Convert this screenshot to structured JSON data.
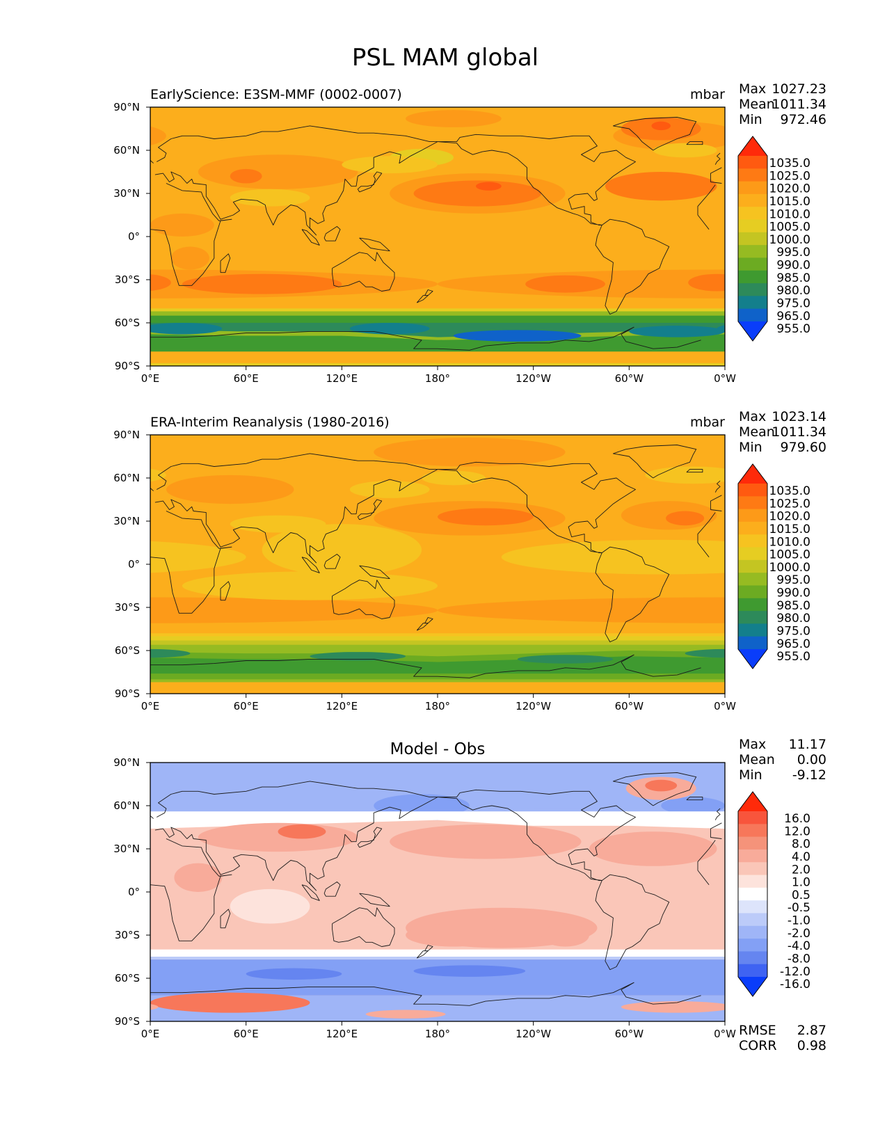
{
  "page_title": "PSL MAM global",
  "chart_data": [
    {
      "type": "heatmap",
      "title_left": "EarlyScience: E3SM-MMF (0002-0007)",
      "title_center": "",
      "units": "mbar",
      "stats": [
        {
          "label": "Max",
          "value": "1027.23"
        },
        {
          "label": "Mean",
          "value": "1011.34"
        },
        {
          "label": "Min",
          "value": "972.46"
        }
      ],
      "colorbar": {
        "levels": [
          "1035.0",
          "1025.0",
          "1020.0",
          "1015.0",
          "1010.0",
          "1005.0",
          "1000.0",
          "995.0",
          "990.0",
          "985.0",
          "980.0",
          "975.0",
          "965.0",
          "955.0"
        ],
        "colors": [
          "#ff2a0a",
          "#ff5a10",
          "#fe7a14",
          "#fd9a18",
          "#fcae1c",
          "#f6c320",
          "#e6cd22",
          "#c4c522",
          "#96bb22",
          "#6cab22",
          "#3f9a30",
          "#2d8a5a",
          "#137f8c",
          "#0f62c9",
          "#0a3dfa"
        ]
      },
      "x_tick_labels": [
        "0°E",
        "60°E",
        "120°E",
        "180°",
        "120°W",
        "60°W",
        "0°W"
      ],
      "y_tick_labels": [
        "90°N",
        "60°N",
        "30°N",
        "0°",
        "30°S",
        "60°S",
        "90°S"
      ],
      "xlim": [
        0,
        360
      ],
      "ylim": [
        -90,
        90
      ]
    },
    {
      "type": "heatmap",
      "title_left": "ERA-Interim Reanalysis (1980-2016)",
      "title_center": "",
      "units": "mbar",
      "stats": [
        {
          "label": "Max",
          "value": "1023.14"
        },
        {
          "label": "Mean",
          "value": "1011.34"
        },
        {
          "label": "Min",
          "value": "979.60"
        }
      ],
      "colorbar": {
        "levels": [
          "1035.0",
          "1025.0",
          "1020.0",
          "1015.0",
          "1010.0",
          "1005.0",
          "1000.0",
          "995.0",
          "990.0",
          "985.0",
          "980.0",
          "975.0",
          "965.0",
          "955.0"
        ],
        "colors": [
          "#ff2a0a",
          "#ff5a10",
          "#fe7a14",
          "#fd9a18",
          "#fcae1c",
          "#f6c320",
          "#e6cd22",
          "#c4c522",
          "#96bb22",
          "#6cab22",
          "#3f9a30",
          "#2d8a5a",
          "#137f8c",
          "#0f62c9",
          "#0a3dfa"
        ]
      },
      "x_tick_labels": [
        "0°E",
        "60°E",
        "120°E",
        "180°",
        "120°W",
        "60°W",
        "0°W"
      ],
      "y_tick_labels": [
        "90°N",
        "60°N",
        "30°N",
        "0°",
        "30°S",
        "60°S",
        "90°S"
      ],
      "xlim": [
        0,
        360
      ],
      "ylim": [
        -90,
        90
      ]
    },
    {
      "type": "heatmap",
      "title_left": "",
      "title_center": "Model - Obs",
      "units": "",
      "stats": [
        {
          "label": "Max",
          "value": "11.17"
        },
        {
          "label": "Mean",
          "value": "0.00"
        },
        {
          "label": "Min",
          "value": "-9.12"
        }
      ],
      "colorbar": {
        "levels": [
          "16.0",
          "12.0",
          "8.0",
          "4.0",
          "2.0",
          "1.0",
          "0.5",
          "-0.5",
          "-1.0",
          "-2.0",
          "-4.0",
          "-8.0",
          "-12.0",
          "-16.0"
        ],
        "colors": [
          "#ff2a0a",
          "#f8553c",
          "#f7775a",
          "#f5937a",
          "#f8ab9a",
          "#fac6b8",
          "#fde3dc",
          "#ffffff",
          "#dde4fb",
          "#bccbf9",
          "#9fb5f7",
          "#83a0f5",
          "#6585f0",
          "#3f63f2",
          "#0a3dfa"
        ]
      },
      "x_tick_labels": [
        "0°E",
        "60°E",
        "120°E",
        "180°",
        "120°W",
        "60°W",
        "0°W"
      ],
      "y_tick_labels": [
        "90°N",
        "60°N",
        "30°N",
        "0°",
        "30°S",
        "60°S",
        "90°S"
      ],
      "xlim": [
        0,
        360
      ],
      "ylim": [
        -90,
        90
      ],
      "metrics": [
        {
          "label": "RMSE",
          "value": "2.87"
        },
        {
          "label": "CORR",
          "value": "0.98"
        }
      ]
    }
  ]
}
